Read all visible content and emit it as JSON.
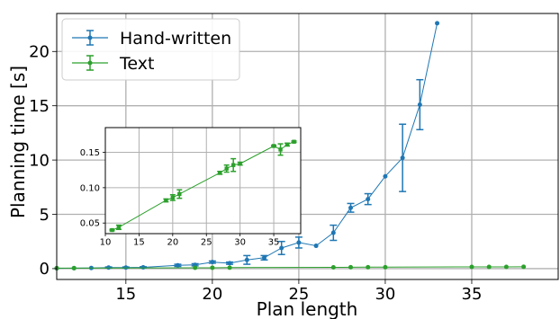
{
  "chart_data": [
    {
      "type": "line",
      "xlabel": "Plan length",
      "ylabel": "Planning time [s]",
      "xlim": [
        11,
        40
      ],
      "ylim": [
        -1,
        23.5
      ],
      "xticks": [
        15,
        20,
        25,
        30,
        35
      ],
      "yticks": [
        0,
        5,
        10,
        15,
        20
      ],
      "grid": true,
      "legend": "top-left",
      "series": [
        {
          "name": "Hand-written",
          "color": "#1f77b4",
          "marker": "circle",
          "points": [
            {
              "x": 11,
              "y": 0.03,
              "err": 0
            },
            {
              "x": 12,
              "y": 0.04,
              "err": 0
            },
            {
              "x": 13,
              "y": 0.06,
              "err": 0
            },
            {
              "x": 14,
              "y": 0.1,
              "err": 0.05
            },
            {
              "x": 15,
              "y": 0.1,
              "err": 0.05
            },
            {
              "x": 16,
              "y": 0.12,
              "err": 0.05
            },
            {
              "x": 18,
              "y": 0.3,
              "err": 0.1
            },
            {
              "x": 19,
              "y": 0.35,
              "err": 0.1
            },
            {
              "x": 20,
              "y": 0.6,
              "err": 0.1
            },
            {
              "x": 21,
              "y": 0.5,
              "err": 0.1
            },
            {
              "x": 22,
              "y": 0.8,
              "err": 0.4
            },
            {
              "x": 23,
              "y": 1.0,
              "err": 0.2
            },
            {
              "x": 24,
              "y": 1.9,
              "err": 0.6
            },
            {
              "x": 25,
              "y": 2.4,
              "err": 0.5
            },
            {
              "x": 26,
              "y": 2.1,
              "err": 0
            },
            {
              "x": 27,
              "y": 3.3,
              "err": 0.7
            },
            {
              "x": 28,
              "y": 5.6,
              "err": 0.4
            },
            {
              "x": 29,
              "y": 6.4,
              "err": 0.5
            },
            {
              "x": 30,
              "y": 8.5,
              "err": 0
            },
            {
              "x": 31,
              "y": 10.2,
              "err": 3.1
            },
            {
              "x": 32,
              "y": 15.1,
              "err": 2.3
            },
            {
              "x": 33,
              "y": 22.6,
              "err": 0
            }
          ]
        },
        {
          "name": "Text",
          "color": "#2ca02c",
          "marker": "circle",
          "points": [
            {
              "x": 11,
              "y": 0.04,
              "err": 0
            },
            {
              "x": 12,
              "y": 0.045,
              "err": 0
            },
            {
              "x": 19,
              "y": 0.075,
              "err": 0
            },
            {
              "x": 20,
              "y": 0.08,
              "err": 0
            },
            {
              "x": 21,
              "y": 0.09,
              "err": 0
            },
            {
              "x": 27,
              "y": 0.12,
              "err": 0
            },
            {
              "x": 28,
              "y": 0.125,
              "err": 0
            },
            {
              "x": 29,
              "y": 0.13,
              "err": 0
            },
            {
              "x": 30,
              "y": 0.13,
              "err": 0
            },
            {
              "x": 35,
              "y": 0.16,
              "err": 0
            },
            {
              "x": 36,
              "y": 0.155,
              "err": 0
            },
            {
              "x": 37,
              "y": 0.16,
              "err": 0
            },
            {
              "x": 38,
              "y": 0.165,
              "err": 0
            }
          ]
        }
      ]
    },
    {
      "type": "line",
      "inset": true,
      "xlim": [
        10,
        39
      ],
      "ylim": [
        0.035,
        0.185
      ],
      "xticks": [
        10,
        15,
        20,
        25,
        30,
        35
      ],
      "yticks": [
        0.05,
        0.1,
        0.15
      ],
      "ytick_labels": [
        "0.05",
        "0.10",
        "0.15"
      ],
      "grid": true,
      "series": [
        {
          "color": "#2ca02c",
          "marker": "square",
          "points": [
            {
              "x": 11,
              "y": 0.04,
              "err": 0.001
            },
            {
              "x": 12,
              "y": 0.044,
              "err": 0.003
            },
            {
              "x": 19,
              "y": 0.082,
              "err": 0.002
            },
            {
              "x": 20,
              "y": 0.086,
              "err": 0.004
            },
            {
              "x": 21,
              "y": 0.091,
              "err": 0.006
            },
            {
              "x": 27,
              "y": 0.121,
              "err": 0.002
            },
            {
              "x": 28,
              "y": 0.127,
              "err": 0.005
            },
            {
              "x": 29,
              "y": 0.132,
              "err": 0.009
            },
            {
              "x": 30,
              "y": 0.134,
              "err": 0.002
            },
            {
              "x": 35,
              "y": 0.159,
              "err": 0.001
            },
            {
              "x": 36,
              "y": 0.154,
              "err": 0.008
            },
            {
              "x": 37,
              "y": 0.161,
              "err": 0.002
            },
            {
              "x": 38,
              "y": 0.165,
              "err": 0.001
            }
          ]
        }
      ]
    }
  ]
}
